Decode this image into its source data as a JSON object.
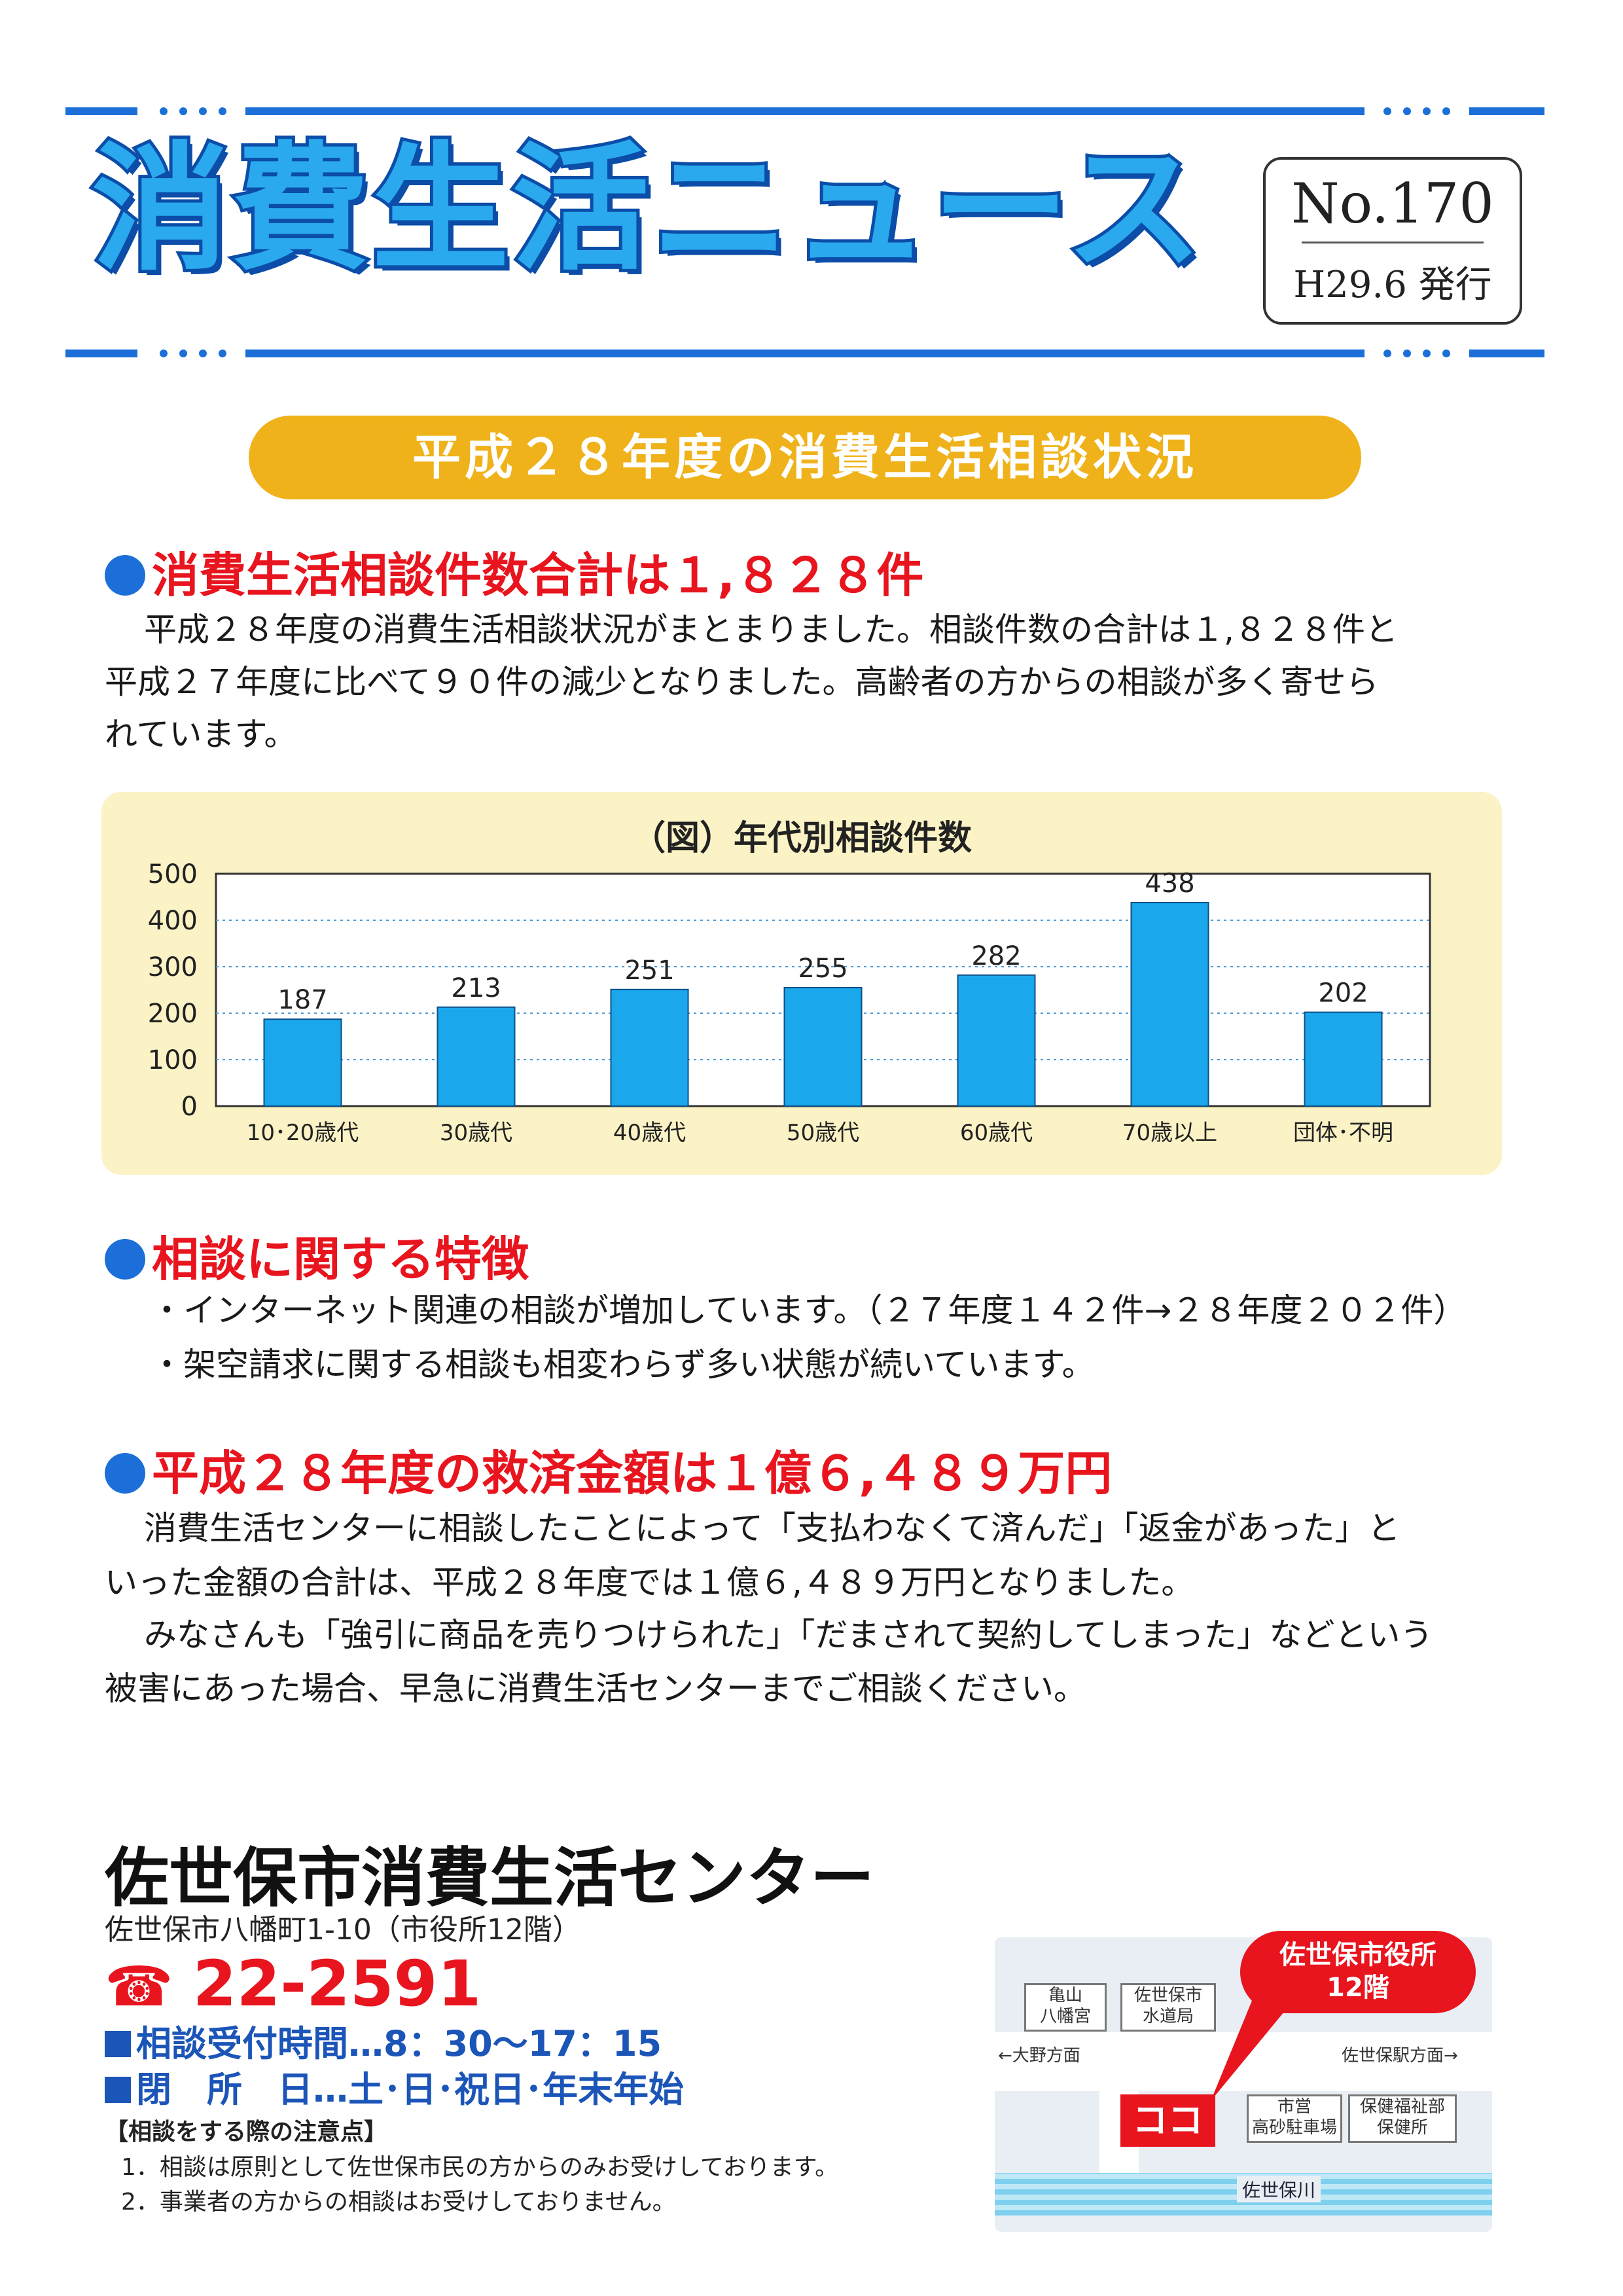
{
  "header": {
    "title": "消費生活ニュース",
    "issue_no": "No.170",
    "issue_date": "H29.6 発行"
  },
  "banner": "平成２８年度の消費生活相談状況",
  "section1": {
    "heading": "消費生活相談件数合計は１,８２８件",
    "lines": [
      "平成２８年度の消費生活相談状況がまとまりました。相談件数の合計は１,８２８件と",
      "平成２７年度に比べて９０件の減少となりました。高齢者の方からの相談が多く寄せら",
      "れています。"
    ]
  },
  "chart_data": {
    "type": "bar",
    "title": "（図）年代別相談件数",
    "categories": [
      "10･20歳代",
      "30歳代",
      "40歳代",
      "50歳代",
      "60歳代",
      "70歳以上",
      "団体･不明"
    ],
    "values": [
      187,
      213,
      251,
      255,
      282,
      438,
      202
    ],
    "ylim": [
      0,
      500
    ],
    "yticks": [
      0,
      100,
      200,
      300,
      400,
      500
    ],
    "grid": true,
    "bar_color": "#1aa7ec"
  },
  "section2": {
    "heading": "相談に関する特徴",
    "bullets": [
      "・インターネット関連の相談が増加しています。（２７年度１４２件→２８年度２０２件）",
      "・架空請求に関する相談も相変わらず多い状態が続いています。"
    ]
  },
  "section3": {
    "heading": "平成２８年度の救済金額は１億６,４８９万円",
    "lines": [
      "消費生活センターに相談したことによって「支払わなくて済んだ」「返金があった」と",
      "いった金額の合計は、平成２８年度では１億６,４８９万円となりました。",
      "みなさんも「強引に商品を売りつけられた」「だまされて契約してしまった」などという",
      "被害にあった場合、早急に消費生活センターまでご相談ください。"
    ]
  },
  "footer": {
    "org_name": "佐世保市消費生活センター",
    "address": "佐世保市八幡町1-10（市役所12階）",
    "tel": "22-2591",
    "hours_line1": "相談受付時間…8：30～17：15",
    "hours_line2": "閉　所　日…土･日･祝日･年末年始",
    "notes_heading": "【相談をする際の注意点】",
    "notes": [
      "1．相談は原則として佐世保市民の方からのみお受けしております。",
      "2．事業者の方からの相談はお受けしておりません。"
    ]
  },
  "map": {
    "callout": [
      "佐世保市役所",
      "12階"
    ],
    "kameyama": [
      "亀山",
      "八幡宮"
    ],
    "suidou": [
      "佐世保市",
      "水道局"
    ],
    "west_dir": "←大野方面",
    "east_dir": "佐世保駅方面→",
    "here": "ココ",
    "parking": [
      "市営",
      "高砂駐車場"
    ],
    "health": [
      "保健福祉部",
      "保健所"
    ],
    "river": "佐世保川"
  },
  "colors": {
    "title_blue": "#2aa9ee",
    "title_outline": "#0b4da8",
    "heading_red": "#e8141e",
    "banner_orange": "#efb21a",
    "dot_blue": "#1c6fd8"
  }
}
